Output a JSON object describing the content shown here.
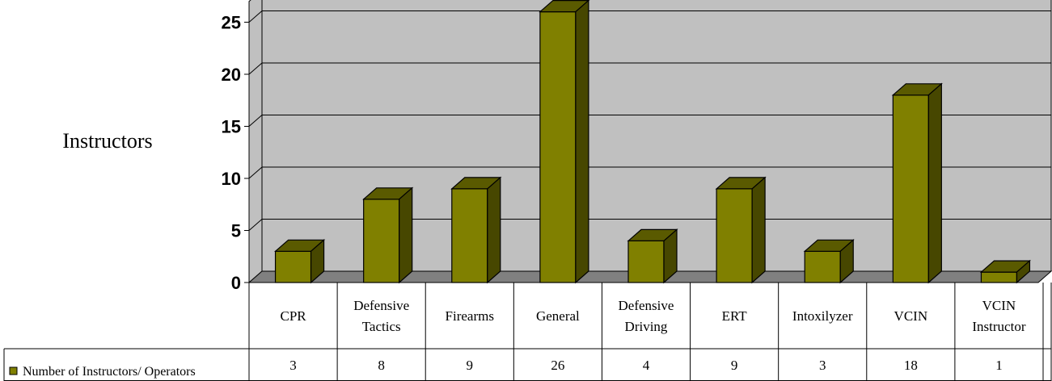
{
  "chart_data": {
    "type": "bar",
    "ylabel": "Instructors",
    "ylim": [
      0,
      26
    ],
    "yticks": [
      0,
      5,
      10,
      15,
      20,
      25
    ],
    "grid": true,
    "categories": [
      [
        "CPR"
      ],
      [
        "Defensive",
        "Tactics"
      ],
      [
        "Firearms"
      ],
      [
        "General"
      ],
      [
        "Defensive",
        "Driving"
      ],
      [
        "ERT"
      ],
      [
        "Intoxilyzer"
      ],
      [
        "VCIN"
      ],
      [
        "VCIN",
        "Instructor"
      ]
    ],
    "series": [
      {
        "name": "Number of Instructors/ Operators",
        "values": [
          3,
          8,
          9,
          26,
          4,
          9,
          3,
          18,
          1
        ]
      }
    ],
    "legend": "data-table-left"
  },
  "colors": {
    "bar_front": "#808000",
    "bar_top": "#5a5a00",
    "bar_side": "#474700",
    "plot_bg": "#c0c0c0",
    "side_wall": "#c0c0c0",
    "floor": "#808080"
  }
}
